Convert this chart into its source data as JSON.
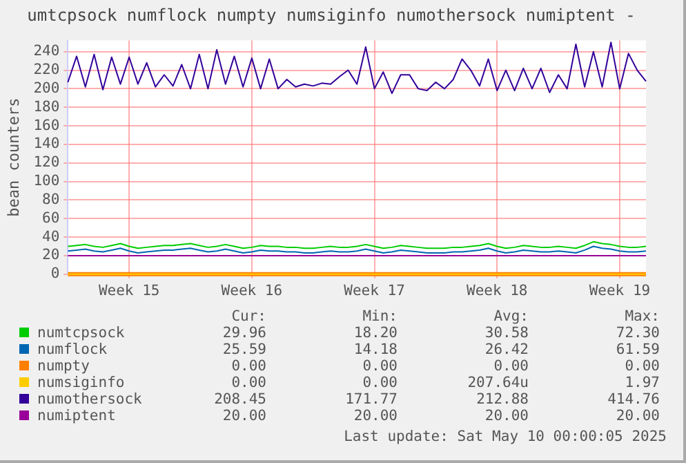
{
  "chart_data": {
    "type": "line",
    "title": "umtcpsock numflock numpty numsiginfo numothersock numiptent -",
    "ylabel": "bean counters",
    "categories": [
      null,
      null,
      null,
      null,
      null,
      null,
      null,
      "Week 15",
      null,
      null,
      null,
      null,
      null,
      null,
      null,
      null,
      null,
      null,
      null,
      null,
      null,
      "Week 16",
      null,
      null,
      null,
      null,
      null,
      null,
      null,
      null,
      null,
      null,
      null,
      null,
      null,
      "Week 17",
      null,
      null,
      null,
      null,
      null,
      null,
      null,
      null,
      null,
      null,
      null,
      null,
      null,
      "Week 18",
      null,
      null,
      null,
      null,
      null,
      null,
      null,
      null,
      null,
      null,
      null,
      null,
      null,
      "Week 19",
      null,
      null,
      null
    ],
    "ylim": [
      0,
      252
    ],
    "yticks": [
      0,
      20,
      40,
      60,
      80,
      100,
      120,
      140,
      160,
      180,
      200,
      220,
      240
    ],
    "grid": true,
    "legend": "bottom",
    "marker": "none",
    "line_style": "solid",
    "series": [
      {
        "name": "numtcpsock",
        "color": "#00cc00",
        "values": [
          30,
          31,
          32,
          30,
          29,
          31,
          33,
          30,
          28,
          29,
          30,
          31,
          31,
          32,
          33,
          31,
          29,
          30,
          32,
          30,
          28,
          29,
          31,
          30,
          30,
          29,
          29,
          28,
          28,
          29,
          30,
          29,
          29,
          30,
          32,
          30,
          28,
          29,
          31,
          30,
          29,
          28,
          28,
          28,
          29,
          29,
          30,
          31,
          33,
          30,
          28,
          29,
          31,
          30,
          29,
          29,
          30,
          29,
          28,
          31,
          35,
          33,
          32,
          30,
          29,
          29,
          30
        ]
      },
      {
        "name": "numflock",
        "color": "#0066b3",
        "values": [
          25,
          26,
          27,
          25,
          24,
          26,
          28,
          25,
          23,
          24,
          25,
          26,
          26,
          27,
          28,
          26,
          24,
          25,
          27,
          25,
          23,
          24,
          26,
          25,
          25,
          24,
          24,
          23,
          23,
          24,
          25,
          24,
          24,
          25,
          27,
          25,
          23,
          24,
          26,
          25,
          24,
          23,
          23,
          23,
          24,
          24,
          25,
          26,
          28,
          25,
          23,
          24,
          26,
          25,
          24,
          24,
          25,
          24,
          23,
          26,
          30,
          28,
          27,
          25,
          24,
          24,
          25
        ]
      },
      {
        "name": "numpty",
        "color": "#ff8000",
        "values": [
          0,
          0,
          0,
          0,
          0,
          0,
          0,
          0,
          0,
          0,
          0,
          0,
          0,
          0,
          0,
          0,
          0,
          0,
          0,
          0,
          0,
          0,
          0,
          0,
          0,
          0,
          0,
          0,
          0,
          0,
          0,
          0,
          0,
          0,
          0,
          0,
          0,
          0,
          0,
          0,
          0,
          0,
          0,
          0,
          0,
          0,
          0,
          0,
          0,
          0,
          0,
          0,
          0,
          0,
          0,
          0,
          0,
          0,
          0,
          0,
          0,
          0,
          0,
          0,
          0,
          0,
          0
        ]
      },
      {
        "name": "numsiginfo",
        "color": "#ffcc00",
        "values": [
          0,
          0,
          0,
          0,
          0,
          0,
          0,
          0,
          0,
          0,
          0,
          0,
          0,
          0,
          0,
          0,
          0,
          0,
          0,
          0,
          0,
          0,
          0,
          0,
          0,
          0,
          0,
          0,
          0,
          0,
          0,
          0,
          0,
          0,
          0,
          0,
          0,
          0,
          0,
          0,
          0,
          0,
          0,
          0,
          0,
          0,
          0,
          0,
          0,
          0,
          0,
          0,
          0,
          0,
          0,
          0,
          0,
          0,
          0,
          0,
          0,
          0,
          0,
          0,
          0,
          0,
          0
        ]
      },
      {
        "name": "numothersock",
        "color": "#330099",
        "values": [
          207,
          235,
          202,
          237,
          199,
          234,
          205,
          234,
          205,
          228,
          202,
          215,
          203,
          226,
          200,
          237,
          200,
          242,
          205,
          235,
          202,
          233,
          200,
          232,
          200,
          210,
          202,
          205,
          203,
          206,
          205,
          213,
          220,
          205,
          245,
          200,
          218,
          195,
          215,
          215,
          200,
          198,
          207,
          200,
          210,
          232,
          220,
          203,
          232,
          198,
          220,
          198,
          222,
          200,
          222,
          196,
          215,
          200,
          248,
          202,
          240,
          202,
          250,
          200,
          238,
          220,
          208
        ]
      },
      {
        "name": "numiptent",
        "color": "#990099",
        "values": [
          20,
          20,
          20,
          20,
          20,
          20,
          20,
          20,
          20,
          20,
          20,
          20,
          20,
          20,
          20,
          20,
          20,
          20,
          20,
          20,
          20,
          20,
          20,
          20,
          20,
          20,
          20,
          20,
          20,
          20,
          20,
          20,
          20,
          20,
          20,
          20,
          20,
          20,
          20,
          20,
          20,
          20,
          20,
          20,
          20,
          20,
          20,
          20,
          20,
          20,
          20,
          20,
          20,
          20,
          20,
          20,
          20,
          20,
          20,
          20,
          20,
          20,
          20,
          20,
          20,
          20,
          20
        ]
      }
    ],
    "annotations": [
      "Cur:",
      "Min:",
      "Avg:",
      "Max:",
      "29.96",
      "18.20",
      "30.58",
      "72.30",
      "25.59",
      "14.18",
      "26.42",
      "61.59",
      "0.00",
      "0.00",
      "0.00",
      "0.00",
      "0.00",
      "0.00",
      "207.64u",
      "1.97",
      "208.45",
      "171.77",
      "212.88",
      "414.76",
      "20.00",
      "20.00",
      "20.00",
      "20.00",
      "Last update: Sat May 10 00:00:05 2025"
    ]
  }
}
